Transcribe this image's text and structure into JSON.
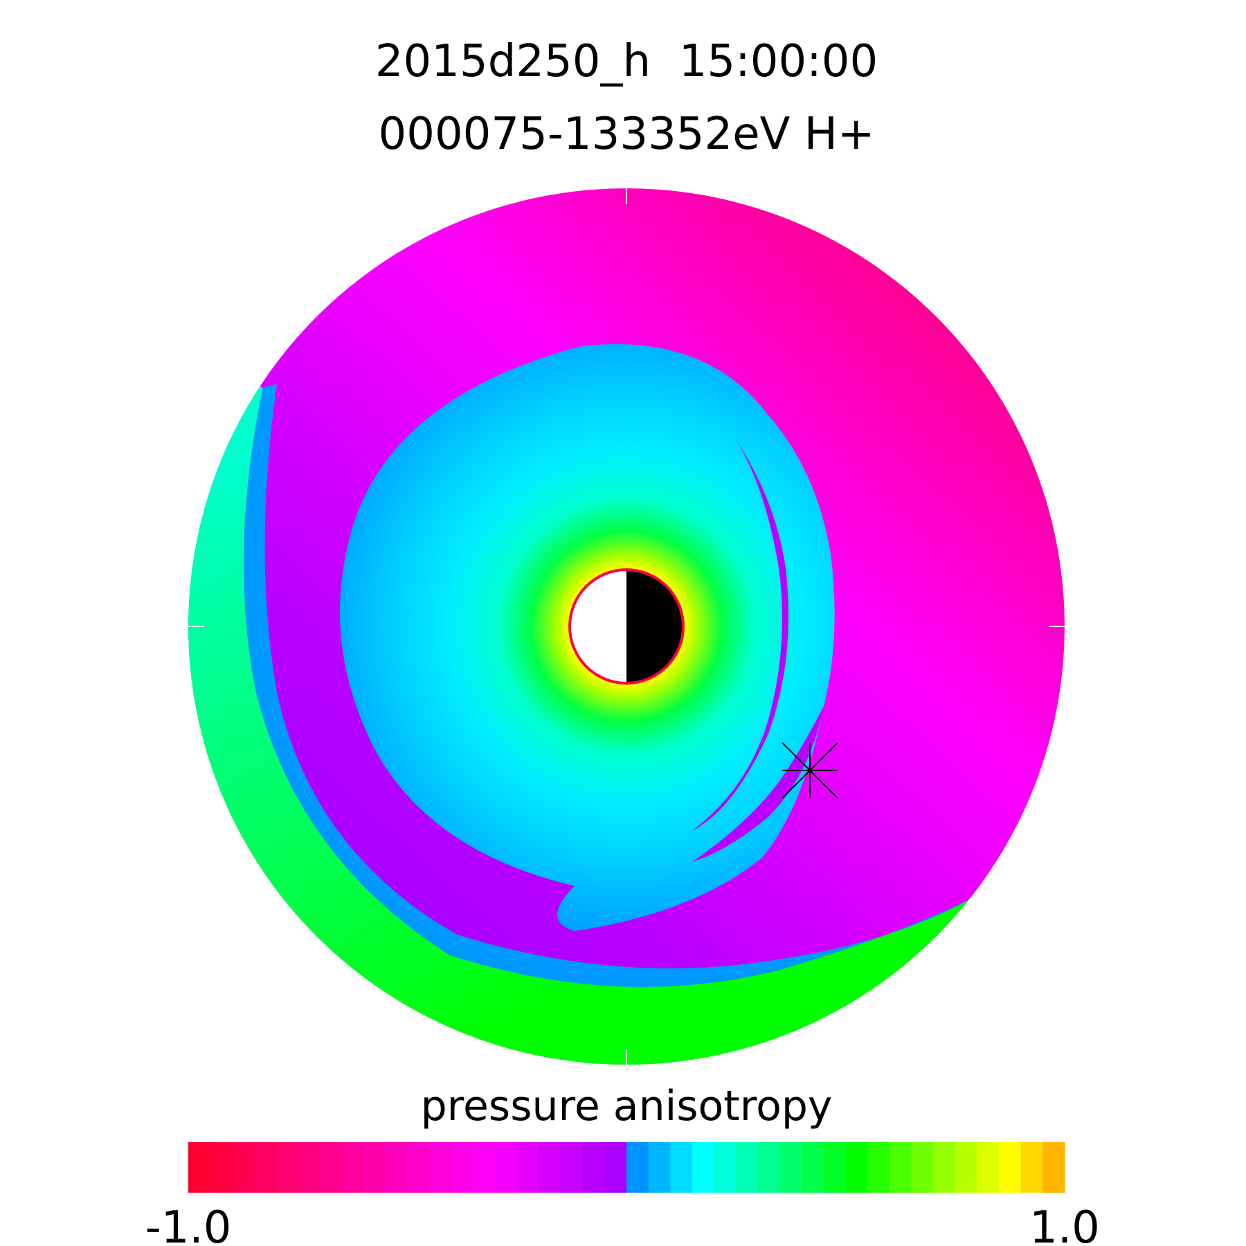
{
  "chart_data": {
    "type": "heatmap",
    "title_line1": "2015d250_h  15:00:00",
    "title_line2": "000075-133352eV H+",
    "colorbar": {
      "label": "pressure anisotropy",
      "min_label": "-1.0",
      "max_label": "1.0",
      "range": [
        -1.0,
        1.0
      ],
      "levels": 40
    },
    "colors": {
      "strong_negative": "#ff0044",
      "negative": "#ff00aa",
      "mid_negative": "#ff00ff",
      "weak_negative": "#bb00ff",
      "weak_positive": "#0099ff",
      "mid_positive": "#00ffff",
      "positive": "#00ff00",
      "strong_positive": "#ffaa00",
      "earth_boundary": "#ff0044"
    },
    "markers": [
      {
        "name": "satellite-position",
        "symbol": "asterisk"
      }
    ],
    "earth": {
      "day_side": "left",
      "night_side": "right"
    }
  }
}
